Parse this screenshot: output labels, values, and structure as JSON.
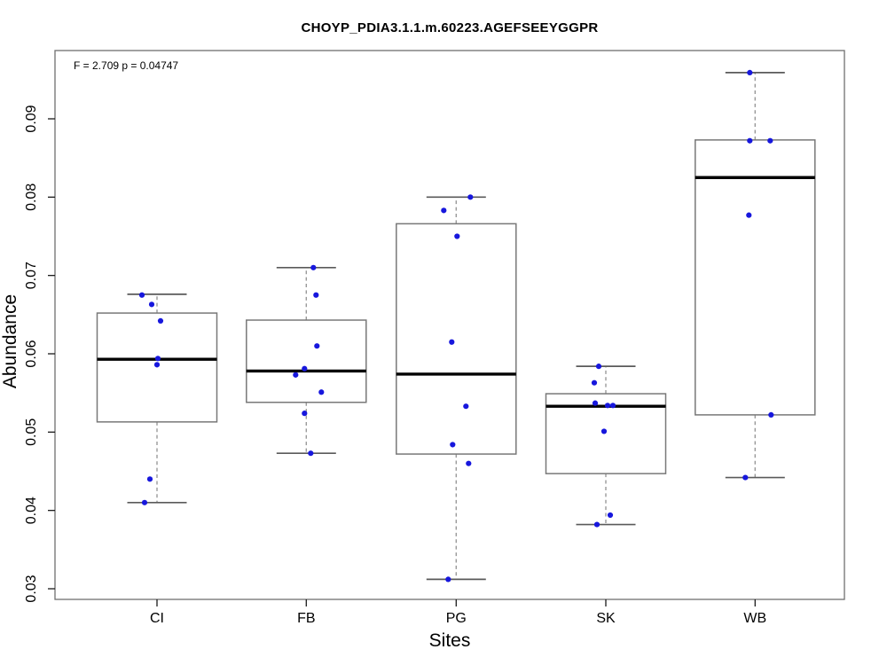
{
  "chart_data": {
    "type": "boxplot",
    "title": "CHOYP_PDIA3.1.1.m.60223.AGEFSEEYGGPR",
    "annotation": "F = 2.709 p = 0.04747",
    "xlabel": "Sites",
    "ylabel": "Abundance",
    "categories": [
      "CI",
      "FB",
      "PG",
      "SK",
      "WB"
    ],
    "yticks": [
      0.03,
      0.04,
      0.05,
      0.06,
      0.07,
      0.08,
      0.09
    ],
    "ylim": [
      0.0286,
      0.0987
    ],
    "grid": false,
    "legend": "none",
    "colors": {
      "point": "#1717dd",
      "box_border": "#787878",
      "plot_border": "#6f6f6f",
      "median": "#000000",
      "whisker": "#999999",
      "cap": "#5a5a5a",
      "axis": "#1a1a1a",
      "background": "#ffffff"
    },
    "series": [
      {
        "site": "CI",
        "whisker_low": 0.041,
        "q1": 0.0513,
        "median": 0.0593,
        "q3": 0.0652,
        "whisker_high": 0.0676,
        "points": [
          0.0675,
          0.0663,
          0.0642,
          0.0594,
          0.0586,
          0.044,
          0.041
        ],
        "point_dx": [
          -17,
          -6,
          4,
          1,
          0,
          -8,
          -14
        ]
      },
      {
        "site": "FB",
        "whisker_low": 0.0473,
        "q1": 0.0538,
        "median": 0.0578,
        "q3": 0.0643,
        "whisker_high": 0.071,
        "points": [
          0.071,
          0.0675,
          0.061,
          0.0581,
          0.0573,
          0.0551,
          0.0524,
          0.0473
        ],
        "point_dx": [
          8,
          11,
          12,
          -2,
          -12,
          17,
          -2,
          5
        ]
      },
      {
        "site": "PG",
        "whisker_low": 0.0312,
        "q1": 0.0472,
        "median": 0.0574,
        "q3": 0.0766,
        "whisker_high": 0.08,
        "points": [
          0.08,
          0.0783,
          0.075,
          0.0615,
          0.0533,
          0.0484,
          0.046,
          0.0312
        ],
        "point_dx": [
          16,
          -14,
          1,
          -5,
          11,
          -4,
          14,
          -9
        ]
      },
      {
        "site": "SK",
        "whisker_low": 0.0382,
        "q1": 0.0447,
        "median": 0.0533,
        "q3": 0.0549,
        "whisker_high": 0.0584,
        "points": [
          0.0584,
          0.0563,
          0.0537,
          0.0534,
          0.0534,
          0.0501,
          0.0394,
          0.0382
        ],
        "point_dx": [
          -8,
          -13,
          -12,
          2,
          8,
          -2,
          5,
          -10
        ]
      },
      {
        "site": "WB",
        "whisker_low": 0.0442,
        "q1": 0.0522,
        "median": 0.0825,
        "q3": 0.0873,
        "whisker_high": 0.0959,
        "points": [
          0.0959,
          0.0872,
          0.0872,
          0.0777,
          0.0522,
          0.0442
        ],
        "point_dx": [
          -6,
          -6,
          17,
          -7,
          18,
          -11
        ]
      }
    ]
  }
}
